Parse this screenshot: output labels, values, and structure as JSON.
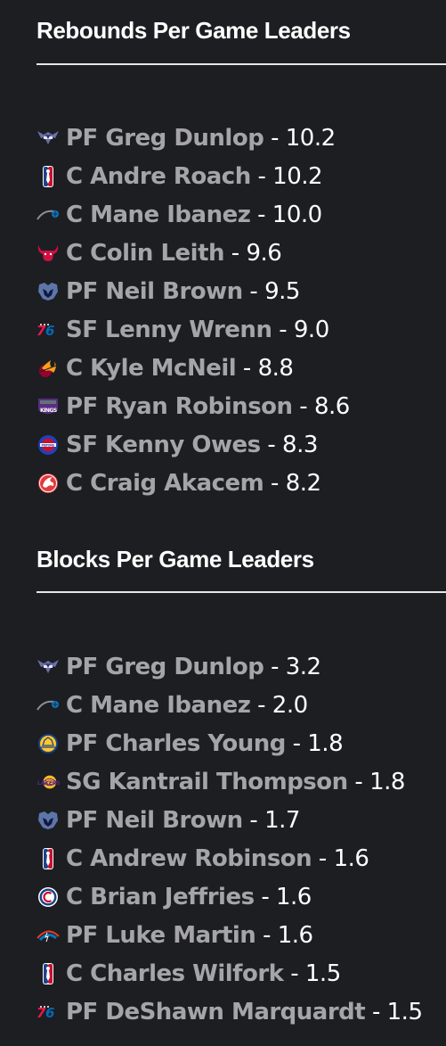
{
  "rebounds": {
    "title": "Rebounds Per Game Leaders",
    "entries": [
      {
        "team_icon": "hornets-logo-icon",
        "position": "PF",
        "name": "Greg Dunlop",
        "player": "PF Greg Dunlop",
        "value": "10.2"
      },
      {
        "team_icon": "nba-logo-icon",
        "position": "C",
        "name": "Andre Roach",
        "player": "C Andre Roach",
        "value": "10.2"
      },
      {
        "team_icon": "magic-logo-icon",
        "position": "C",
        "name": "Mane Ibanez",
        "player": "C Mane Ibanez",
        "value": "10.0"
      },
      {
        "team_icon": "bulls-logo-icon",
        "position": "C",
        "name": "Colin Leith",
        "player": "C Colin Leith",
        "value": "9.6"
      },
      {
        "team_icon": "grizzlies-logo-icon",
        "position": "PF",
        "name": "Neil Brown",
        "player": "PF Neil Brown",
        "value": "9.5"
      },
      {
        "team_icon": "76ers-logo-icon",
        "position": "SF",
        "name": "Lenny Wrenn",
        "player": "SF Lenny Wrenn",
        "value": "9.0"
      },
      {
        "team_icon": "heat-logo-icon",
        "position": "C",
        "name": "Kyle McNeil",
        "player": "C Kyle McNeil",
        "value": "8.8"
      },
      {
        "team_icon": "kings-logo-icon",
        "position": "PF",
        "name": "Ryan Robinson",
        "player": "PF Ryan Robinson",
        "value": "8.6"
      },
      {
        "team_icon": "pistons-logo-icon",
        "position": "SF",
        "name": "Kenny Owes",
        "player": "SF Kenny Owes",
        "value": "8.3"
      },
      {
        "team_icon": "hawks-logo-icon",
        "position": "C",
        "name": "Craig Akacem",
        "player": "C Craig Akacem",
        "value": "8.2"
      }
    ]
  },
  "blocks": {
    "title": "Blocks Per Game Leaders",
    "entries": [
      {
        "team_icon": "hornets-logo-icon",
        "position": "PF",
        "name": "Greg Dunlop",
        "player": "PF Greg Dunlop",
        "value": "3.2"
      },
      {
        "team_icon": "magic-logo-icon",
        "position": "C",
        "name": "Mane Ibanez",
        "player": "C Mane Ibanez",
        "value": "2.0"
      },
      {
        "team_icon": "warriors-logo-icon",
        "position": "PF",
        "name": "Charles Young",
        "player": "PF Charles Young",
        "value": "1.8"
      },
      {
        "team_icon": "lakers-logo-icon",
        "position": "SG",
        "name": "Kantrail Thompson",
        "player": "SG Kantrail Thompson",
        "value": "1.8"
      },
      {
        "team_icon": "grizzlies-logo-icon",
        "position": "PF",
        "name": "Neil Brown",
        "player": "PF Neil Brown",
        "value": "1.7"
      },
      {
        "team_icon": "nba-logo-icon",
        "position": "C",
        "name": "Andrew Robinson",
        "player": "C Andrew Robinson",
        "value": "1.6"
      },
      {
        "team_icon": "clippers-logo-icon",
        "position": "C",
        "name": "Brian Jeffries",
        "player": "C Brian Jeffries",
        "value": "1.6"
      },
      {
        "team_icon": "thunder-logo-icon",
        "position": "PF",
        "name": "Luke Martin",
        "player": "PF Luke Martin",
        "value": "1.6"
      },
      {
        "team_icon": "nba-logo-icon",
        "position": "C",
        "name": "Charles Wilfork",
        "player": "C Charles Wilfork",
        "value": "1.5"
      },
      {
        "team_icon": "76ers-logo-icon",
        "position": "PF",
        "name": "DeShawn Marquardt",
        "player": "PF DeShawn Marquardt",
        "value": "1.5"
      }
    ]
  },
  "separator": "-"
}
